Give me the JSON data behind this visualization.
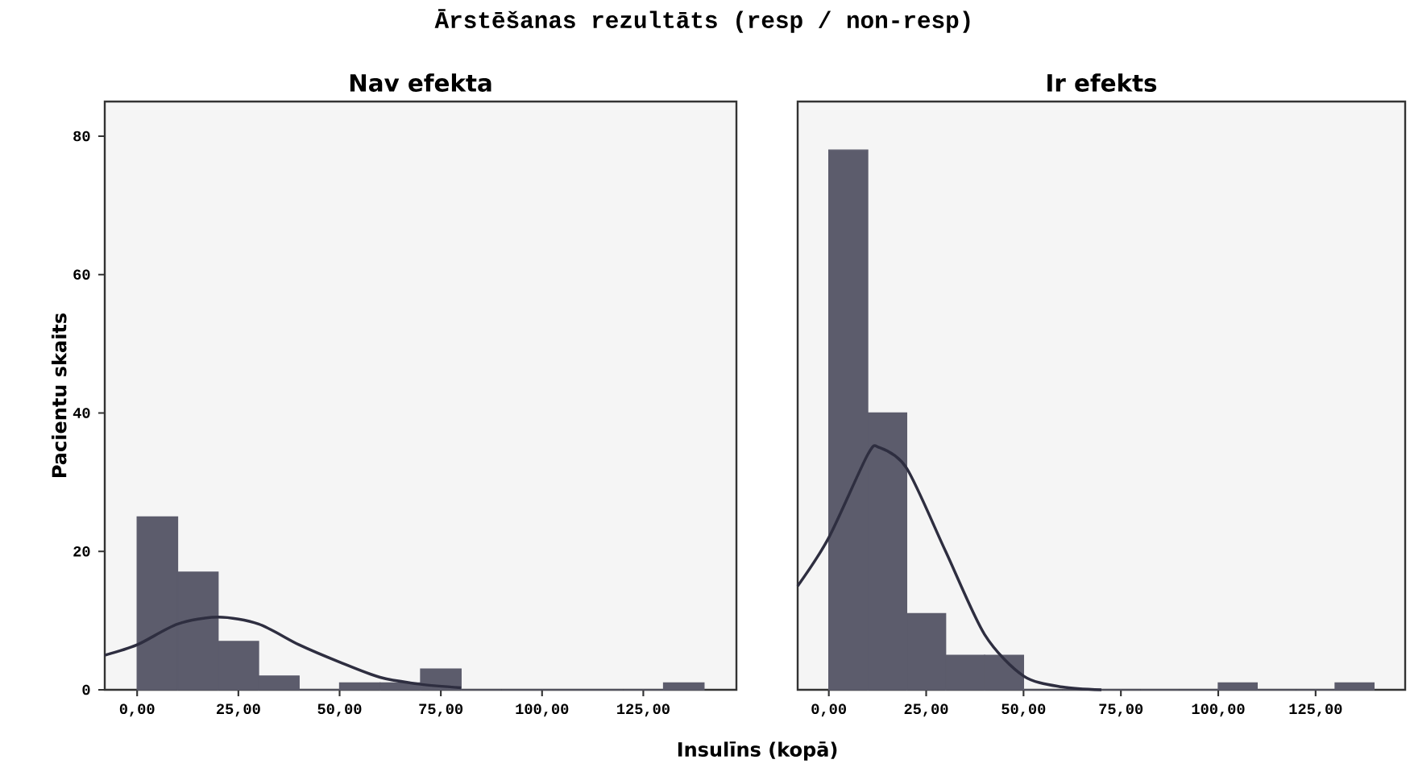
{
  "chart_data": [
    {
      "type": "histogram",
      "title": "Ārstēšanas rezultāts (resp / non-resp)",
      "subtitle": "Nav efekta",
      "xlabel": "Insulīns (kopā)",
      "ylabel": "Pacientu skaits",
      "series": [
        {
          "color": "#5c5c6c",
          "bins": [
            0,
            10,
            20,
            30,
            40,
            50,
            60,
            70,
            80,
            90,
            100,
            110,
            120,
            130,
            140
          ],
          "values": [
            25,
            17,
            7,
            2,
            0,
            1,
            1,
            3,
            0,
            0,
            0,
            0,
            0,
            1
          ]
        },
        {
          "type": "line",
          "color": "#2e2e40",
          "x": [
            -8,
            0,
            10,
            20,
            30,
            40,
            50,
            60,
            70,
            80
          ],
          "values": [
            5,
            6.5,
            9.5,
            10.5,
            9.5,
            6.5,
            4,
            1.8,
            0.8,
            0.3
          ]
        }
      ],
      "xlim": [
        -8,
        148
      ],
      "ylim": [
        0,
        85
      ],
      "xticks": [
        {
          "value": 0,
          "label": "0,00"
        },
        {
          "value": 25,
          "label": "25,00"
        },
        {
          "value": 50,
          "label": "50,00"
        },
        {
          "value": 75,
          "label": "75,00"
        },
        {
          "value": 100,
          "label": "100,00"
        },
        {
          "value": 125,
          "label": "125,00"
        }
      ],
      "yticks": [
        0,
        20,
        40,
        60,
        80
      ]
    },
    {
      "type": "histogram",
      "subtitle": "Ir efekts",
      "tick_labels": "x",
      "series": [
        {
          "color": "#5c5c6c",
          "bins": [
            0,
            10,
            20,
            30,
            40,
            50,
            60,
            70,
            80,
            90,
            100,
            110,
            120,
            130,
            140
          ],
          "values": [
            78,
            40,
            11,
            5,
            5,
            0,
            0,
            0,
            0,
            0,
            1,
            0,
            0,
            1
          ]
        },
        {
          "type": "line",
          "color": "#2e2e40",
          "x": [
            -8,
            0,
            10,
            13,
            20,
            30,
            40,
            50,
            60,
            70
          ],
          "values": [
            15,
            22,
            34,
            35,
            32,
            20,
            8,
            2,
            0.4,
            0
          ]
        }
      ],
      "xlim": [
        -8,
        148
      ],
      "ylim": [
        0,
        85
      ],
      "xticks": [
        {
          "value": 0,
          "label": "0,00"
        },
        {
          "value": 25,
          "label": "25,00"
        },
        {
          "value": 50,
          "label": "50,00"
        },
        {
          "value": 75,
          "label": "75,00"
        },
        {
          "value": 100,
          "label": "100,00"
        },
        {
          "value": 125,
          "label": "125,00"
        }
      ],
      "yticks": [
        0,
        20,
        40,
        60,
        80
      ]
    }
  ]
}
